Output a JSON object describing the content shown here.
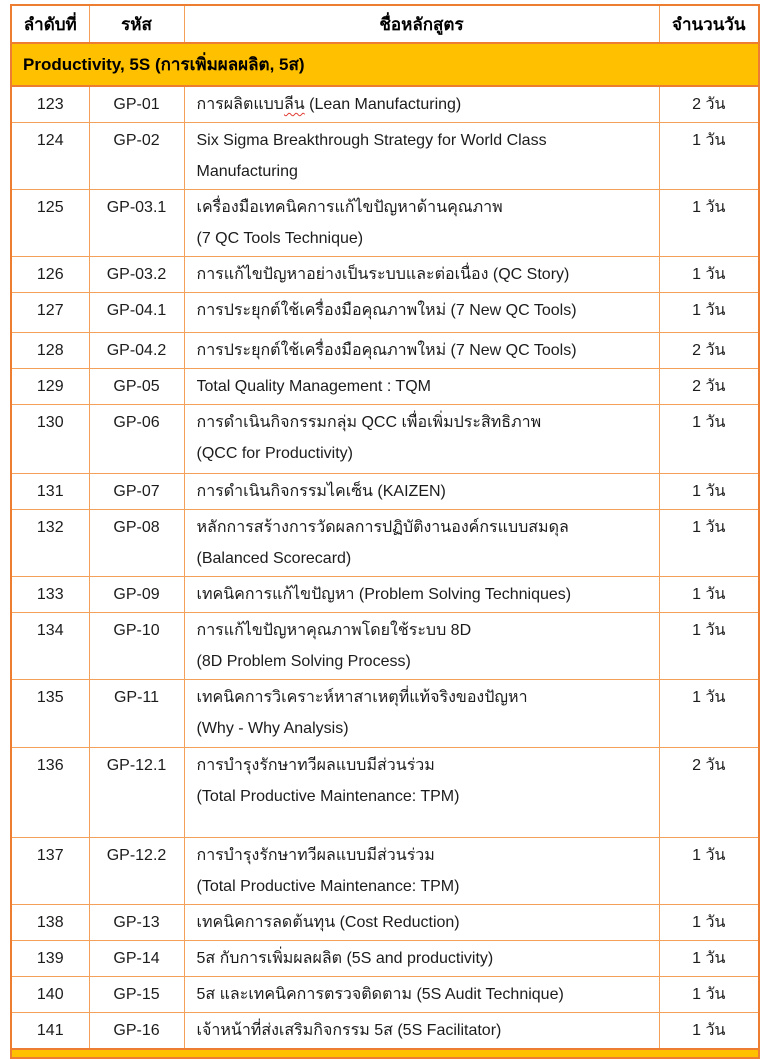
{
  "table": {
    "columns": [
      {
        "label": "ลำดับที่"
      },
      {
        "label": "รหัส"
      },
      {
        "label": "ชื่อหลักสูตร"
      },
      {
        "label": "จำนวนวัน"
      }
    ],
    "section": {
      "title": "Productivity, 5S (การเพิ่มผลผลิต, 5ส)"
    },
    "rows": [
      {
        "no": "123",
        "code": "GP-01",
        "days": "2 วัน",
        "name_lines": [
          {
            "pre": "การผลิตแบบ",
            "squiggle": "ลีน",
            "post": " (Lean Manufacturing)"
          }
        ]
      },
      {
        "no": "124",
        "code": "GP-02",
        "days": "1 วัน",
        "name_lines": [
          "Six Sigma Breakthrough Strategy for World Class",
          "Manufacturing"
        ]
      },
      {
        "no": "125",
        "code": "GP-03.1",
        "days": "1 วัน",
        "name_lines": [
          "เครื่องมือเทคนิคการแก้ไขปัญหาด้านคุณภาพ",
          "(7 QC Tools Technique)"
        ]
      },
      {
        "no": "126",
        "code": "GP-03.2",
        "days": "1 วัน",
        "name_lines": [
          "การแก้ไขปัญหาอย่างเป็นระบบและต่อเนื่อง (QC Story)"
        ]
      },
      {
        "no": "127",
        "code": "GP-04.1",
        "days": "1 วัน",
        "name_lines": [
          "การประยุกต์ใช้เครื่องมือคุณภาพใหม่  (7 New QC Tools)"
        ]
      },
      {
        "no": "128",
        "code": "GP-04.2",
        "days": "2 วัน",
        "name_lines": [
          "การประยุกต์ใช้เครื่องมือคุณภาพใหม่ (7 New QC Tools)"
        ]
      },
      {
        "no": "129",
        "code": "GP-05",
        "days": "2 วัน",
        "name_lines": [
          "Total Quality Management : TQM"
        ]
      },
      {
        "no": "130",
        "code": "GP-06",
        "days": "1 วัน",
        "name_lines": [
          "การดำเนินกิจกรรมกลุ่ม QCC เพื่อเพิ่มประสิทธิภาพ",
          "(QCC for Productivity)"
        ]
      },
      {
        "no": "131",
        "code": "GP-07",
        "days": "1 วัน",
        "name_lines": [
          "การดำเนินกิจกรรมไคเซ็น (KAIZEN)"
        ]
      },
      {
        "no": "132",
        "code": "GP-08",
        "days": "1 วัน",
        "name_lines": [
          "หลักการสร้างการวัดผลการปฏิบัติงานองค์กรแบบสมดุล",
          "(Balanced Scorecard)"
        ]
      },
      {
        "no": "133",
        "code": "GP-09",
        "days": "1 วัน",
        "name_lines": [
          "เทคนิคการแก้ไขปัญหา (Problem Solving Techniques)"
        ]
      },
      {
        "no": "134",
        "code": "GP-10",
        "days": "1 วัน",
        "name_lines": [
          "การแก้ไขปัญหาคุณภาพโดยใช้ระบบ 8D",
          "(8D Problem Solving Process)"
        ]
      },
      {
        "no": "135",
        "code": "GP-11",
        "days": "1 วัน",
        "name_lines": [
          "เทคนิคการวิเคราะห์หาสาเหตุที่แท้จริงของปัญหา",
          "(Why  - Why Analysis)"
        ]
      },
      {
        "no": "136",
        "code": "GP-12.1",
        "days": "2 วัน",
        "name_lines": [
          "การบำรุงรักษาทวีผลแบบมีส่วนร่วม",
          "(Total Productive Maintenance: TPM)"
        ]
      },
      {
        "no": "137",
        "code": "GP-12.2",
        "days": "1 วัน",
        "name_lines": [
          "การบำรุงรักษาทวีผลแบบมีส่วนร่วม",
          "(Total Productive Maintenance: TPM)"
        ]
      },
      {
        "no": "138",
        "code": "GP-13",
        "days": "1 วัน",
        "name_lines": [
          "เทคนิคการลดต้นทุน (Cost Reduction)"
        ]
      },
      {
        "no": "139",
        "code": "GP-14",
        "days": "1 วัน",
        "name_lines": [
          "5ส กับการเพิ่มผลผลิต (5S and productivity)"
        ]
      },
      {
        "no": "140",
        "code": "GP-15",
        "days": "1 วัน",
        "name_lines": [
          "5ส และเทคนิคการตรวจติดตาม (5S Audit Technique)"
        ]
      },
      {
        "no": "141",
        "code": "GP-16",
        "days": "1 วัน",
        "name_lines": [
          "เจ้าหน้าที่ส่งเสริมกิจกรรม 5ส  (5S Facilitator)"
        ]
      }
    ]
  },
  "colors": {
    "section_bg": "#FFC000",
    "grid_border": "#F2A05A",
    "outer_border": "#ED7D31",
    "spellcheck_underline": "#E03B30",
    "text": "#1c1c1c"
  }
}
